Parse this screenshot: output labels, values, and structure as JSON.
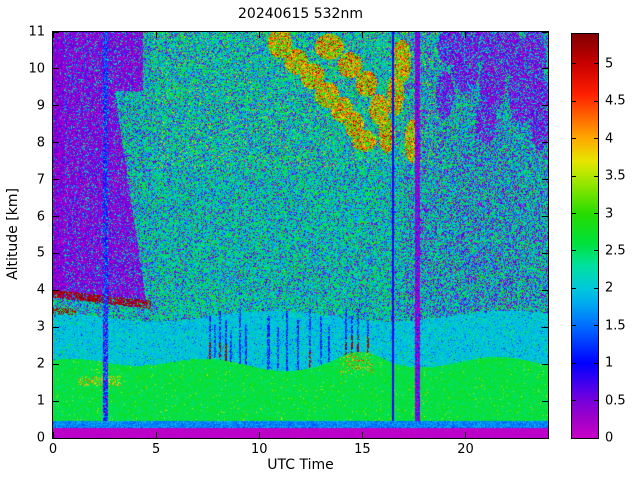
{
  "title": "20240615 532nm",
  "chart_data": {
    "type": "heatmap",
    "title": "20240615 532nm",
    "xlabel": "UTC Time",
    "ylabel": "Altitude [km]",
    "xlim": [
      0,
      24
    ],
    "ylim": [
      0,
      11
    ],
    "x_major_ticks": [
      0,
      5,
      10,
      15,
      20
    ],
    "x_tick_labels": [
      "0",
      "5",
      "10",
      "15",
      "20"
    ],
    "y_major_ticks": [
      0,
      1,
      2,
      3,
      4,
      5,
      6,
      7,
      8,
      9,
      10,
      11
    ],
    "y_tick_labels": [
      "0",
      "1",
      "2",
      "3",
      "4",
      "5",
      "6",
      "7",
      "8",
      "9",
      "10",
      "11"
    ],
    "grid": false,
    "legend": "none",
    "colorbar": {
      "position": "right",
      "vmin": 0,
      "vmax": 5.4,
      "tick_values": [
        0,
        0.5,
        1,
        1.5,
        2,
        2.5,
        3,
        3.5,
        4,
        4.5,
        5
      ],
      "tick_labels": [
        "0",
        "0.5",
        "1",
        "1.5",
        "2",
        "2.5",
        "3",
        "3.5",
        "4",
        "4.5",
        "5"
      ]
    },
    "colormap": {
      "name": "lidar-jet",
      "stops": [
        [
          0.0,
          "#c800c8"
        ],
        [
          0.25,
          "#a000c8"
        ],
        [
          0.5,
          "#7800dc"
        ],
        [
          0.75,
          "#3c00f0"
        ],
        [
          1.0,
          "#0000ff"
        ],
        [
          1.5,
          "#006eff"
        ],
        [
          1.8,
          "#00aaf0"
        ],
        [
          2.0,
          "#00c8dc"
        ],
        [
          2.3,
          "#00e1a0"
        ],
        [
          2.6,
          "#00e13c"
        ],
        [
          3.0,
          "#28dc00"
        ],
        [
          3.4,
          "#96e600"
        ],
        [
          3.7,
          "#e6e600"
        ],
        [
          4.0,
          "#ffaa00"
        ],
        [
          4.3,
          "#ff6400"
        ],
        [
          4.6,
          "#ff1e00"
        ],
        [
          5.0,
          "#c80000"
        ],
        [
          5.4,
          "#820000"
        ]
      ]
    },
    "features": {
      "seed": 42,
      "surface_band": {
        "alt": [
          0,
          0.28
        ],
        "value": 0.05
      },
      "near_surface_line": {
        "alt": [
          0.28,
          0.45
        ],
        "value": 1.6
      },
      "boundary_layer": {
        "alt_top_mean": 2.0,
        "value": 2.62
      },
      "transition_layer": {
        "alt_top_mean": 3.3,
        "value": 2.0
      },
      "morning_cloud": {
        "t": [
          0,
          4.75
        ],
        "base_alt": [
          3.8,
          3.5
        ],
        "top_alt": 11,
        "base_streak_value": 5.1
      },
      "blue_gap_stripe": {
        "t": [
          2.42,
          2.68
        ]
      },
      "purple_gap_stripe": {
        "t": [
          17.55,
          17.8
        ]
      },
      "dark_line_t": 16.47,
      "elevated_orange_layer": {
        "t": [
          10,
          18
        ],
        "alt": [
          7.8,
          11
        ]
      },
      "upper_right_purple": {
        "t": [
          18.5,
          24
        ],
        "alt": [
          8,
          11
        ]
      },
      "precip_streaks_t": [
        7.6,
        7.85,
        8.1,
        8.4,
        8.65,
        9.05,
        9.35,
        10.45,
        10.9,
        11.35,
        11.9,
        12.45,
        13.0,
        13.4,
        14.2,
        14.5,
        14.8,
        15.25
      ],
      "streak_tops": [
        3.3,
        3.05,
        3.45,
        3.2,
        2.9,
        3.5,
        3.1,
        3.3,
        3.0,
        3.45,
        3.2,
        3.5,
        3.3,
        3.0,
        3.55,
        3.3,
        3.5,
        3.2
      ],
      "streak_red_tip": [
        1,
        0,
        1,
        1,
        0,
        0,
        0,
        0,
        0,
        0,
        0,
        1,
        0,
        0,
        1,
        1,
        1,
        1
      ],
      "orange_blobs": [
        [
          11.0,
          10.7,
          0.5,
          0.35
        ],
        [
          11.8,
          10.2,
          0.5,
          0.3
        ],
        [
          12.6,
          9.8,
          0.5,
          0.3
        ],
        [
          13.3,
          9.3,
          0.5,
          0.3
        ],
        [
          14.0,
          8.9,
          0.45,
          0.3
        ],
        [
          14.6,
          8.5,
          0.4,
          0.3
        ],
        [
          13.4,
          10.6,
          0.6,
          0.3
        ],
        [
          14.4,
          10.1,
          0.5,
          0.3
        ],
        [
          15.2,
          9.6,
          0.45,
          0.3
        ],
        [
          15.8,
          8.9,
          0.4,
          0.35
        ],
        [
          16.2,
          8.2,
          0.35,
          0.4
        ],
        [
          16.6,
          9.3,
          0.35,
          0.5
        ],
        [
          16.9,
          10.2,
          0.4,
          0.5
        ],
        [
          17.4,
          8.05,
          0.3,
          0.5
        ],
        [
          15.1,
          8.05,
          0.5,
          0.25
        ]
      ],
      "purple_blobs": [
        [
          19.3,
          10.6,
          0.5,
          0.4
        ],
        [
          20.0,
          10.0,
          0.5,
          0.5
        ],
        [
          20.6,
          10.7,
          0.6,
          0.4
        ],
        [
          21.3,
          9.6,
          0.5,
          0.6
        ],
        [
          22.0,
          10.5,
          0.6,
          0.5
        ],
        [
          22.7,
          9.4,
          0.5,
          0.7
        ],
        [
          23.3,
          10.3,
          0.5,
          0.6
        ],
        [
          21.0,
          8.6,
          0.4,
          0.5
        ],
        [
          23.6,
          8.8,
          0.4,
          0.8
        ],
        [
          19.0,
          9.3,
          0.35,
          0.5
        ]
      ]
    }
  }
}
